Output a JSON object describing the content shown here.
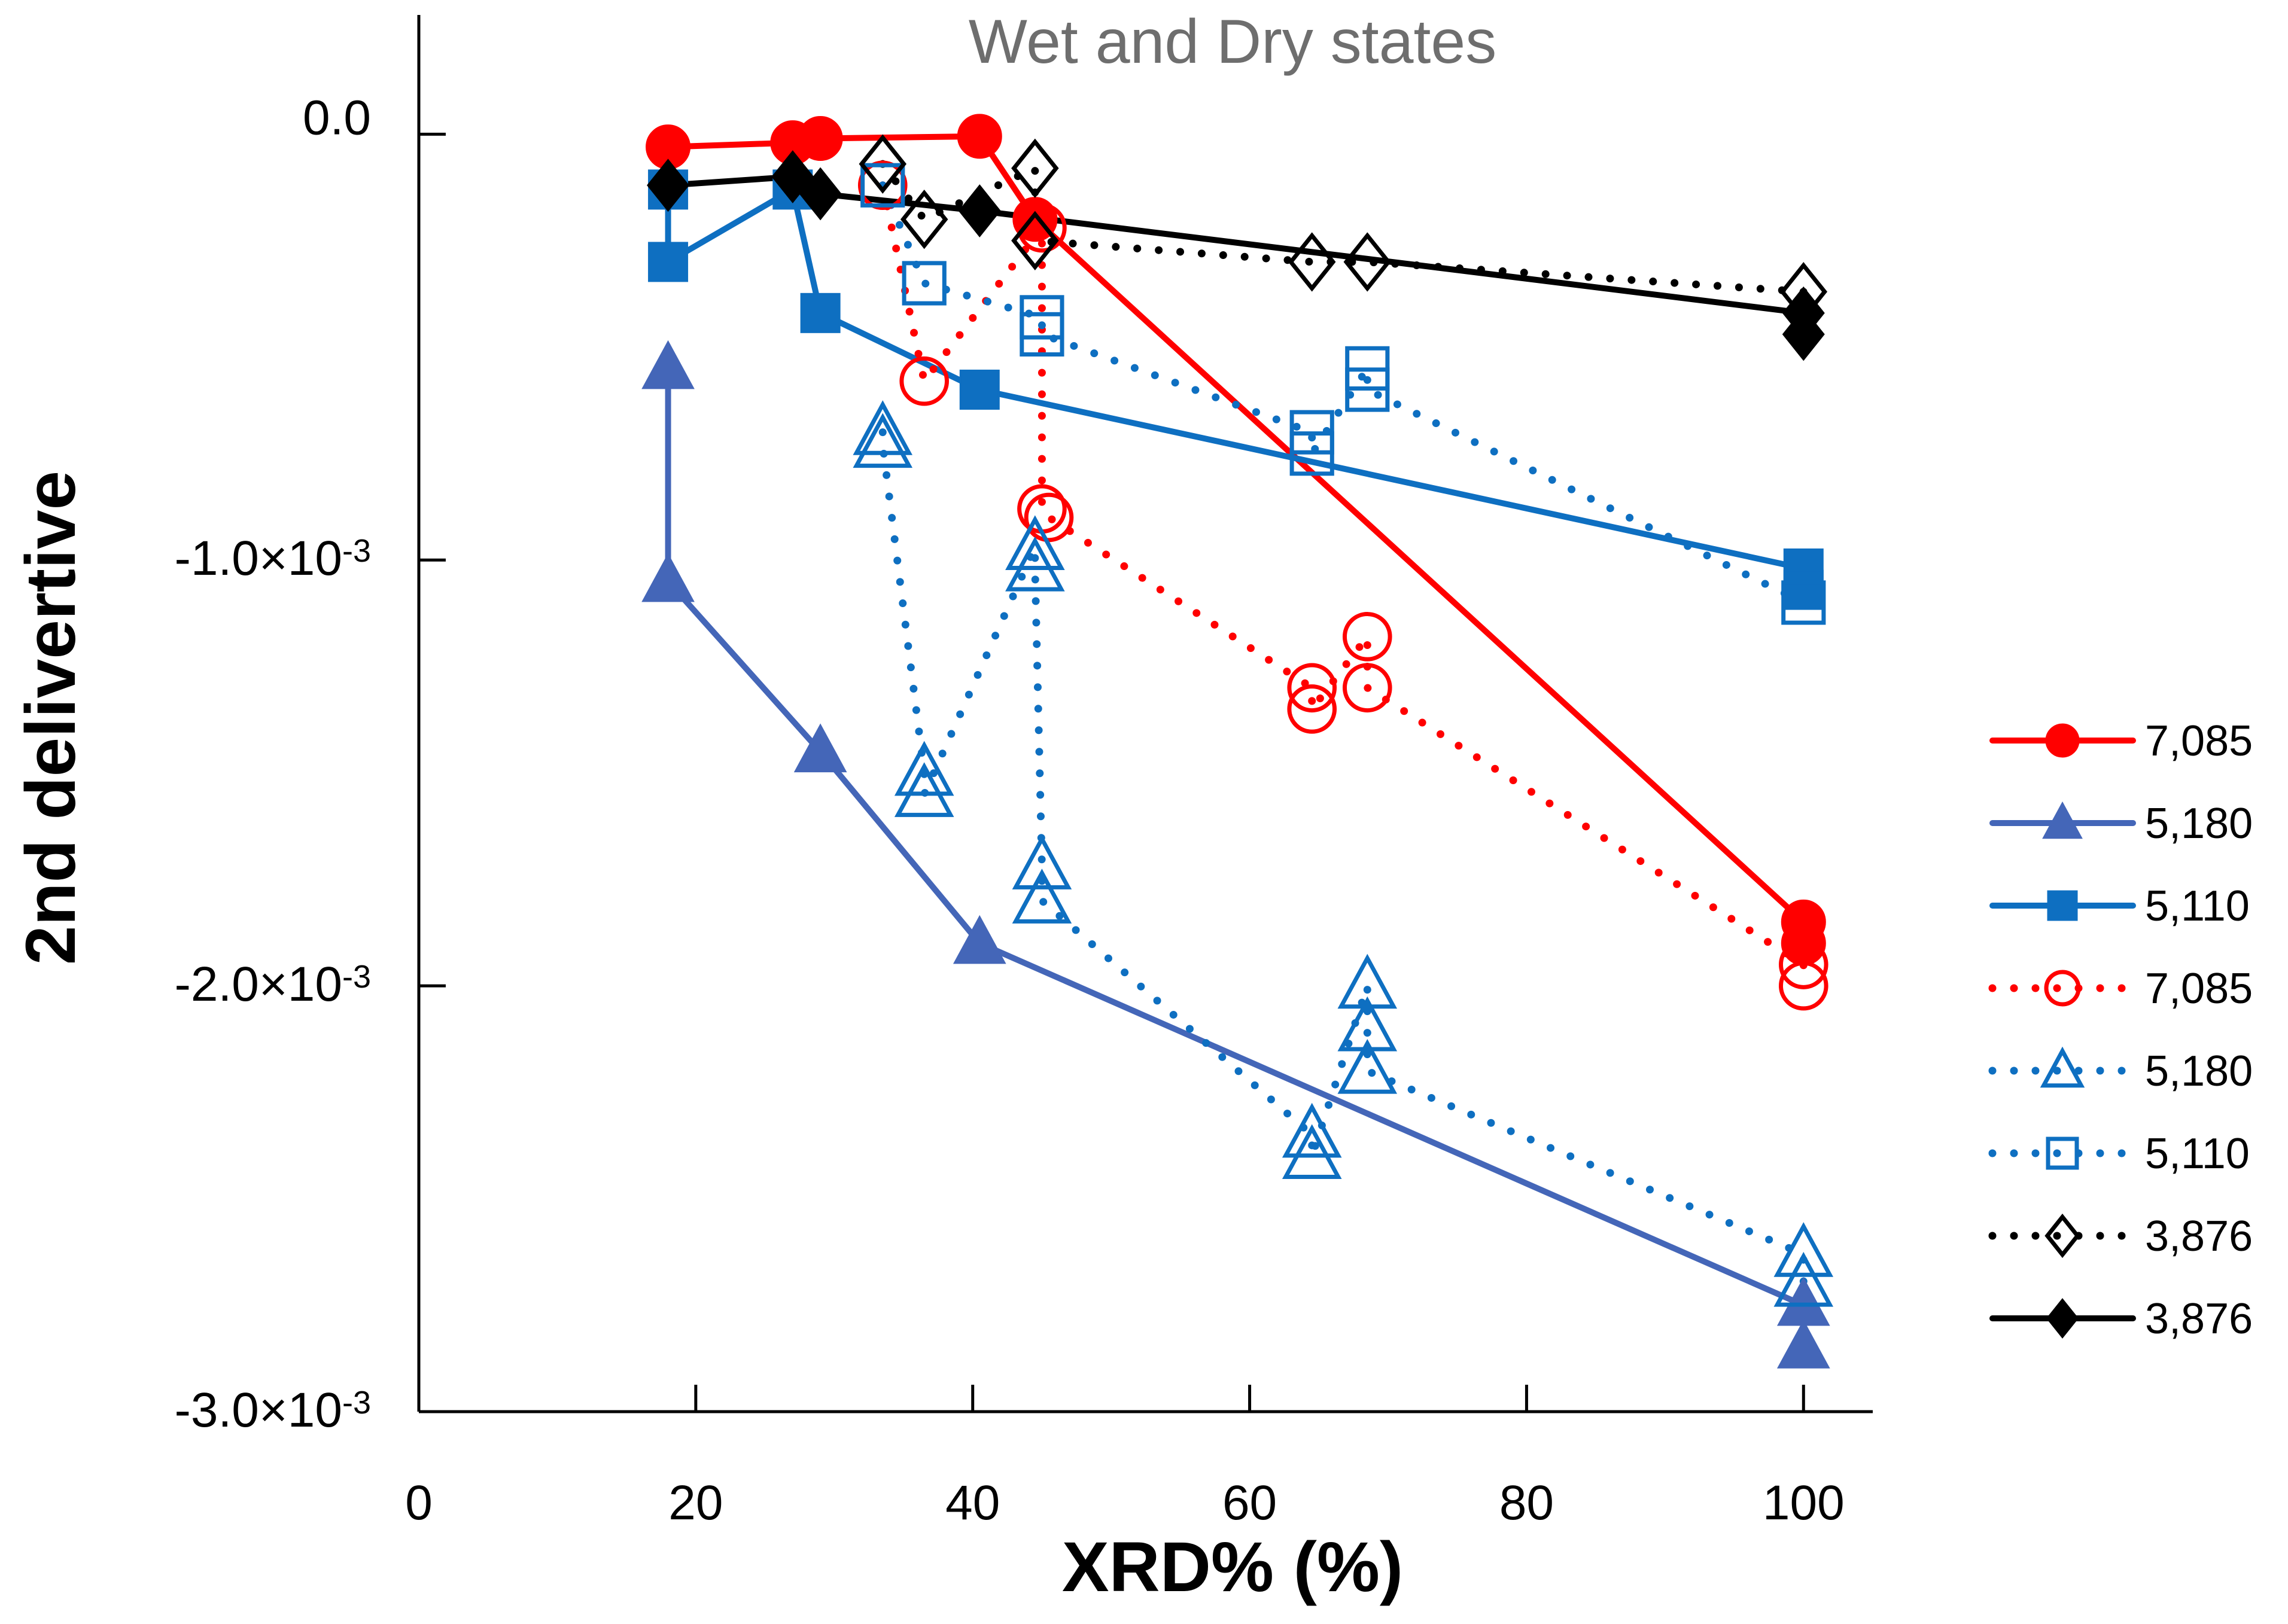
{
  "chart_data": {
    "type": "scatter",
    "title": "Wet and Dry states",
    "xlabel": "XRD% (%)",
    "ylabel": "2nd delivertive",
    "xlim": [
      0,
      105
    ],
    "ylim": [
      -0.003,
      0.00028
    ],
    "x_ticks": [
      0,
      20,
      40,
      60,
      80,
      100
    ],
    "x_tick_labels": [
      "0",
      "20",
      "40",
      "60",
      "80",
      "100"
    ],
    "y_ticks": [
      0,
      -0.001,
      -0.002,
      -0.003
    ],
    "y_tick_labels": [
      {
        "mantissa": "0.0",
        "exponent": ""
      },
      {
        "mantissa": "-1.0×10",
        "exponent": "-3"
      },
      {
        "mantissa": "-2.0×10",
        "exponent": "-3"
      },
      {
        "mantissa": "-3.0×10",
        "exponent": "-3"
      }
    ],
    "grid": false,
    "legend_position": "right",
    "series": [
      {
        "name": "7,085",
        "color": "#ff0000",
        "marker": "circle",
        "filled": true,
        "line": "solid",
        "points": [
          [
            18,
            -3e-05
          ],
          [
            27,
            -2e-05
          ],
          [
            29,
            -1e-05
          ],
          [
            40.5,
            -5e-06
          ],
          [
            44.5,
            -0.0002
          ],
          [
            100,
            -0.00185
          ],
          [
            100,
            -0.0019
          ]
        ]
      },
      {
        "name": "5,180",
        "color": "#4466b8",
        "marker": "triangle",
        "filled": true,
        "line": "solid",
        "points": [
          [
            18,
            -0.00055
          ],
          [
            18,
            -0.00105
          ],
          [
            29,
            -0.00145
          ],
          [
            40.5,
            -0.0019
          ],
          [
            100,
            -0.00275
          ],
          [
            100,
            -0.00285
          ]
        ]
      },
      {
        "name": "5,110",
        "color": "#0e6fc1",
        "marker": "square",
        "filled": true,
        "line": "solid",
        "points": [
          [
            18,
            -0.00013
          ],
          [
            18,
            -0.0003
          ],
          [
            27,
            -0.00013
          ],
          [
            29,
            -0.00042
          ],
          [
            40.5,
            -0.0006
          ],
          [
            100,
            -0.00102
          ],
          [
            100,
            -0.00107
          ]
        ]
      },
      {
        "name": "7,085",
        "color": "#ff0000",
        "marker": "circle",
        "filled": false,
        "line": "dotted",
        "points": [
          [
            33.5,
            -0.00012
          ],
          [
            36.5,
            -0.00058
          ],
          [
            45,
            -0.00022
          ],
          [
            45,
            -0.00088
          ],
          [
            45.5,
            -0.0009
          ],
          [
            64.5,
            -0.0013
          ],
          [
            64.5,
            -0.00135
          ],
          [
            68.5,
            -0.00118
          ],
          [
            68.5,
            -0.0013
          ],
          [
            100,
            -0.00195
          ],
          [
            100,
            -0.002
          ]
        ]
      },
      {
        "name": "5,180",
        "color": "#0e6fc1",
        "marker": "triangle",
        "filled": false,
        "line": "dotted",
        "points": [
          [
            33.5,
            -0.0007
          ],
          [
            33.5,
            -0.00073
          ],
          [
            36.5,
            -0.0015
          ],
          [
            36.5,
            -0.00155
          ],
          [
            44.5,
            -0.00097
          ],
          [
            44.5,
            -0.00102
          ],
          [
            45,
            -0.00172
          ],
          [
            45,
            -0.0018
          ],
          [
            64.5,
            -0.00235
          ],
          [
            64.5,
            -0.0024
          ],
          [
            68.5,
            -0.002
          ],
          [
            68.5,
            -0.0021
          ],
          [
            68.5,
            -0.0022
          ],
          [
            100,
            -0.00263
          ],
          [
            100,
            -0.0027
          ]
        ]
      },
      {
        "name": "5,110",
        "color": "#0e6fc1",
        "marker": "square",
        "filled": false,
        "line": "dotted",
        "points": [
          [
            33.5,
            -0.00012
          ],
          [
            36.5,
            -0.00035
          ],
          [
            45,
            -0.00043
          ],
          [
            45,
            -0.00047
          ],
          [
            64.5,
            -0.0007
          ],
          [
            64.5,
            -0.00075
          ],
          [
            68.5,
            -0.00055
          ],
          [
            68.5,
            -0.0006
          ],
          [
            100,
            -0.0011
          ]
        ]
      },
      {
        "name": "3,876",
        "color": "#000000",
        "marker": "diamond",
        "filled": false,
        "line": "dotted",
        "points": [
          [
            33.5,
            -7e-05
          ],
          [
            36.5,
            -0.0002
          ],
          [
            44.5,
            -8e-05
          ],
          [
            44.5,
            -0.00025
          ],
          [
            64.5,
            -0.0003
          ],
          [
            68.5,
            -0.0003
          ],
          [
            100,
            -0.00037
          ]
        ]
      },
      {
        "name": "3,876",
        "color": "#000000",
        "marker": "diamond",
        "filled": true,
        "line": "solid",
        "points": [
          [
            18,
            -0.00012
          ],
          [
            27,
            -0.0001
          ],
          [
            29,
            -0.00014
          ],
          [
            40.5,
            -0.00018
          ],
          [
            100,
            -0.00042
          ],
          [
            100,
            -0.00047
          ]
        ]
      }
    ]
  }
}
